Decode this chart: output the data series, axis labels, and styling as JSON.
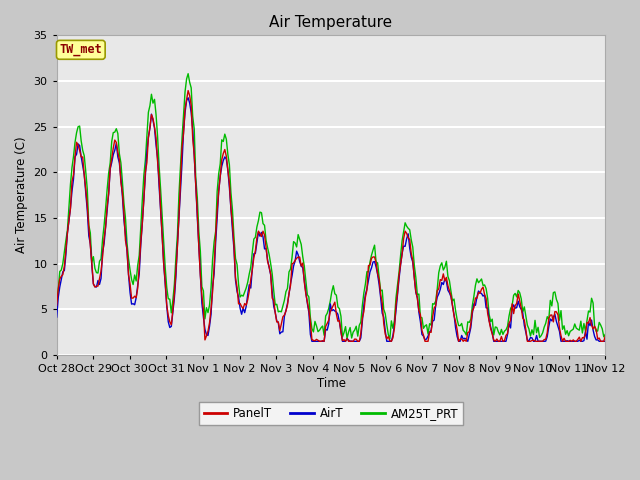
{
  "title": "Air Temperature",
  "ylabel": "Air Temperature (C)",
  "xlabel": "Time",
  "station_label": "TW_met",
  "ylim": [
    0,
    35
  ],
  "plot_bg_color": "#e8e8e8",
  "grid_color": "white",
  "fig_bg_color": "#c8c8c8",
  "legend_labels": [
    "PanelT",
    "AirT",
    "AM25T_PRT"
  ],
  "legend_colors": [
    "#cc0000",
    "#0000cc",
    "#00bb00"
  ],
  "x_tick_labels": [
    "Oct 28",
    "Oct 29",
    "Oct 30",
    "Oct 31",
    "Nov 1",
    "Nov 2",
    "Nov 3",
    "Nov 4",
    "Nov 5",
    "Nov 6",
    "Nov 7",
    "Nov 8",
    "Nov 9",
    "Nov 10",
    "Nov 11",
    "Nov 12"
  ],
  "yticks": [
    0,
    5,
    10,
    15,
    20,
    25,
    30,
    35
  ],
  "figsize": [
    6.4,
    4.8
  ],
  "dpi": 100
}
